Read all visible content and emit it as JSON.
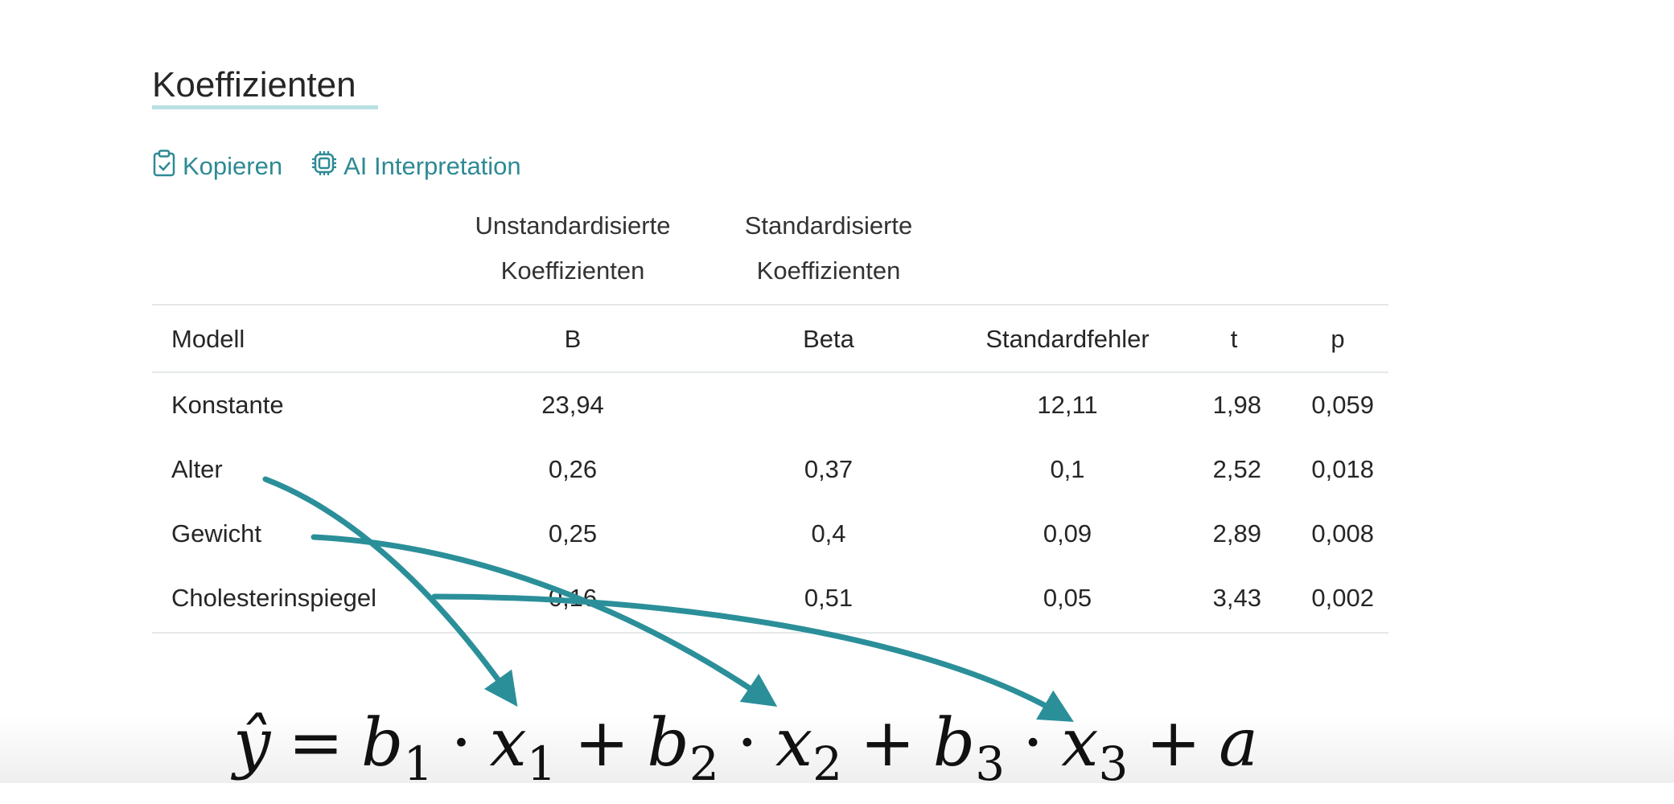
{
  "section": {
    "title": "Koeffizienten",
    "actions": {
      "copy": "Kopieren",
      "ai": "AI Interpretation"
    }
  },
  "table": {
    "group_headers": {
      "unstandardized": [
        "Unstandardisierte",
        "Koeffizienten"
      ],
      "standardized": [
        "Standardisierte",
        "Koeffizienten"
      ]
    },
    "columns": [
      "Modell",
      "B",
      "Beta",
      "Standardfehler",
      "t",
      "p"
    ],
    "rows": [
      [
        "Konstante",
        "23,94",
        "",
        "12,11",
        "1,98",
        "0,059"
      ],
      [
        "Alter",
        "0,26",
        "0,37",
        "0,1",
        "2,52",
        "0,018"
      ],
      [
        "Gewicht",
        "0,25",
        "0,4",
        "0,09",
        "2,89",
        "0,008"
      ],
      [
        "Cholesterinspiegel",
        "0,16",
        "0,51",
        "0,05",
        "3,43",
        "0,002"
      ]
    ]
  },
  "formula": {
    "yhat": "ŷ",
    "equals": "=",
    "b": "b",
    "x": "x",
    "a": "a",
    "plus": "+",
    "dot": "·",
    "idx1": "1",
    "idx2": "2",
    "idx3": "3"
  },
  "colors": {
    "accent": "#2e8a95",
    "arrow": "#2b8f99",
    "underline": "#b9e0e2",
    "divider": "#e4e8ea"
  },
  "icons": [
    "clipboard-icon",
    "chip-icon"
  ]
}
